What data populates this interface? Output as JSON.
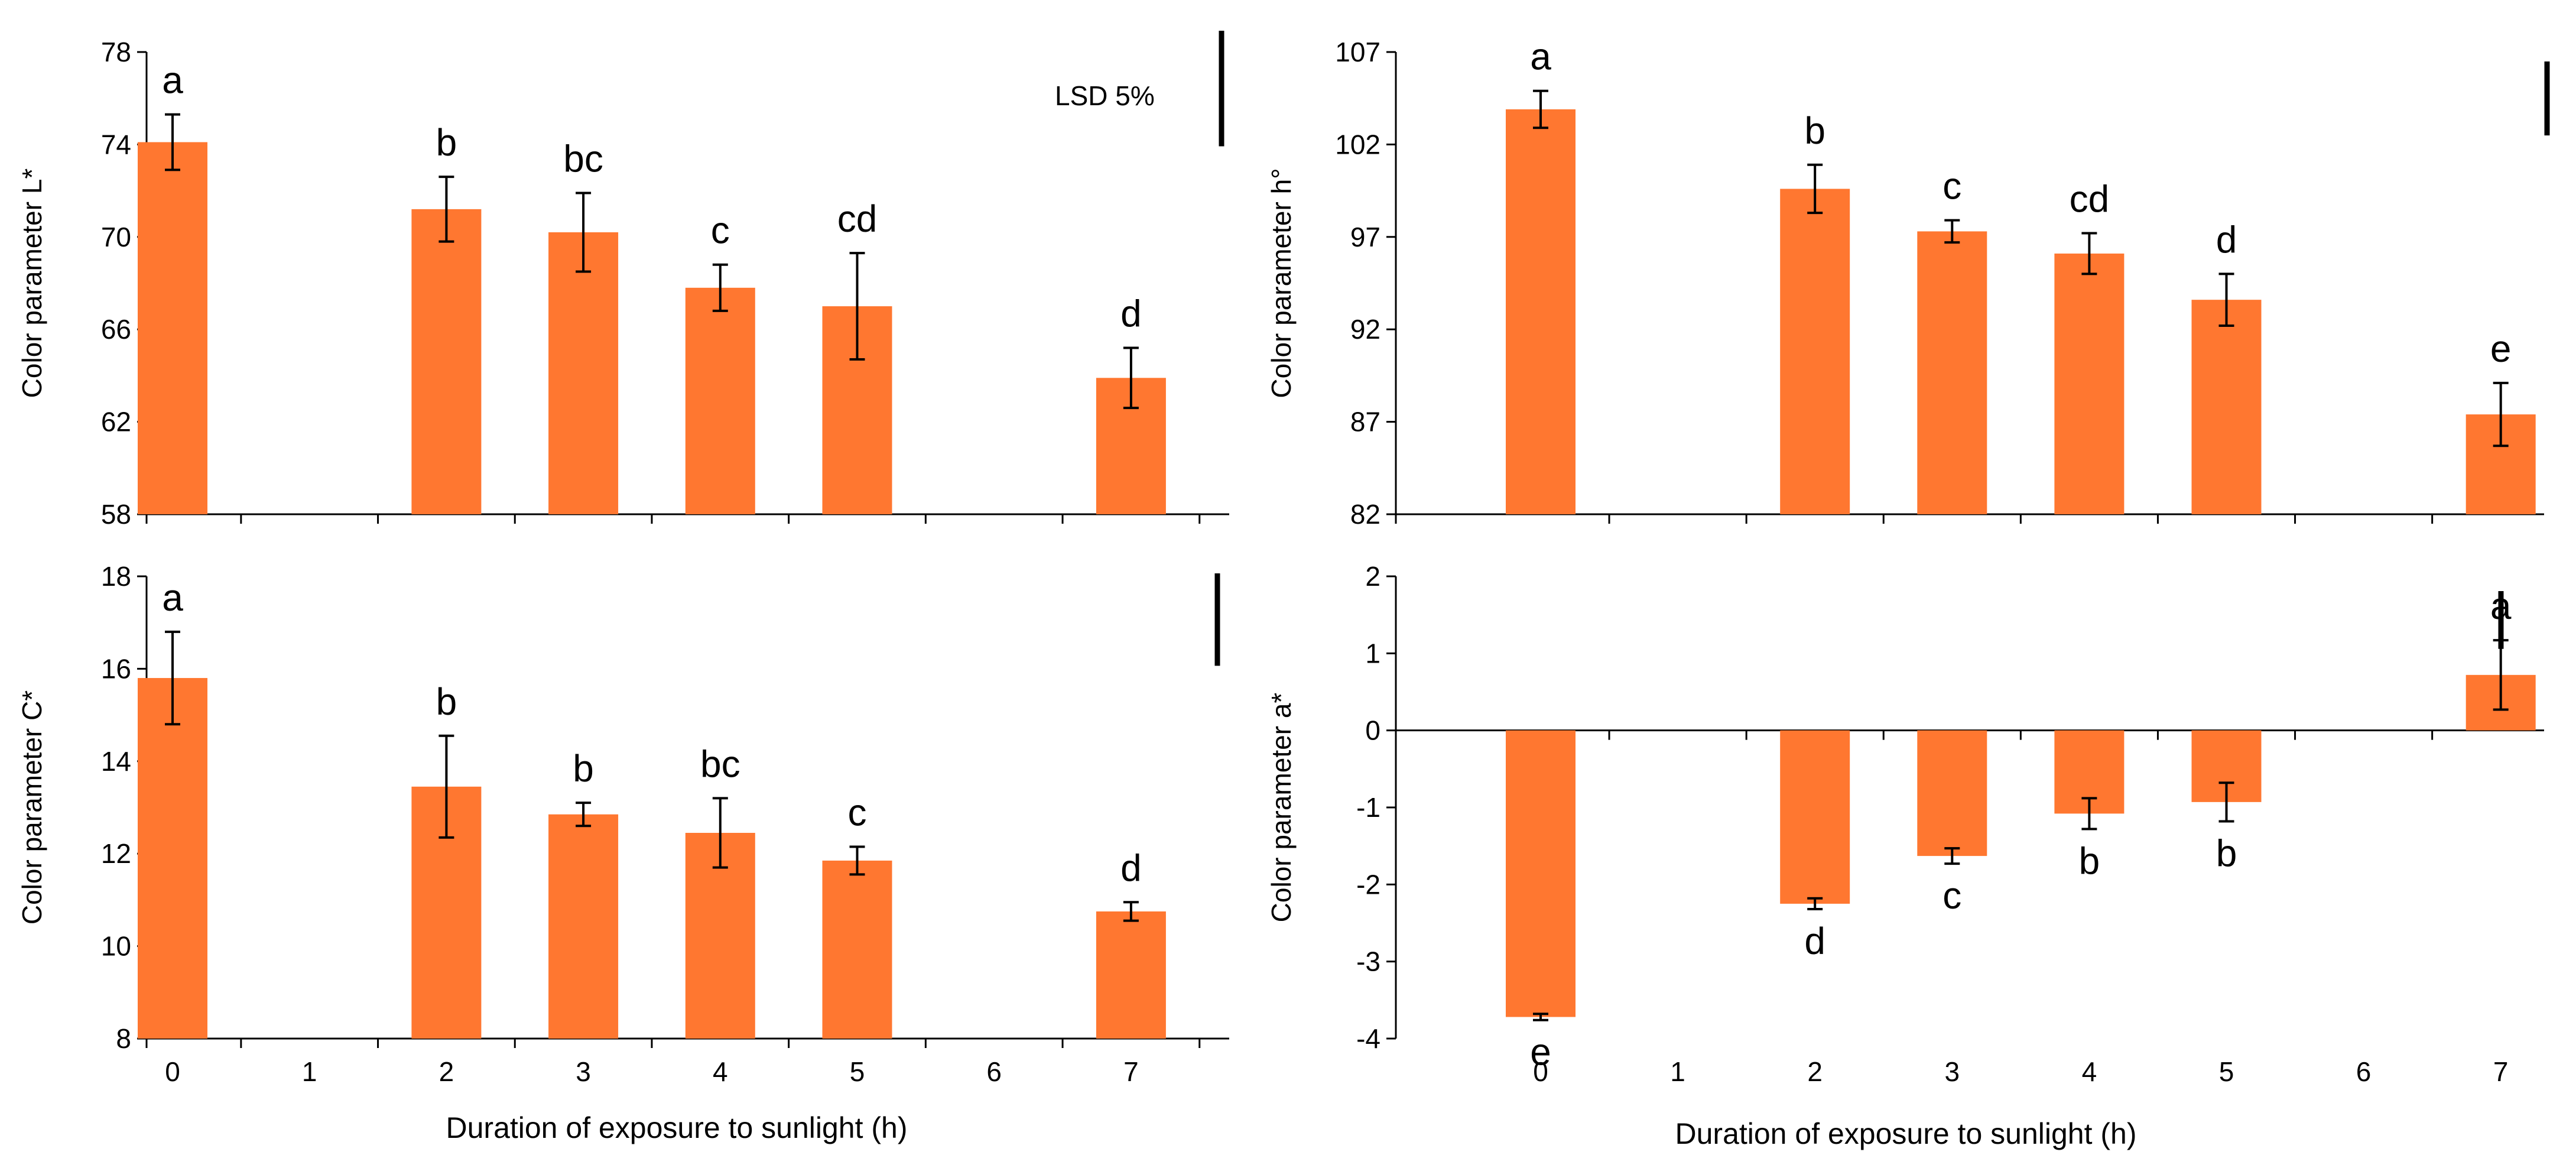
{
  "colors": {
    "bar": "#FF7730",
    "axis": "#000000"
  },
  "lsd_label": "LSD 5%",
  "x_axis_title": "Duration of exposure to sunlight (h)",
  "chart_data": [
    {
      "type": "bar",
      "panel": "top-left",
      "ylabel": "Color parameter L*",
      "ylim": [
        58,
        78
      ],
      "yticks": [
        "58",
        "62",
        "66",
        "70",
        "74",
        "78"
      ],
      "categories": [
        "0",
        "1",
        "2",
        "3",
        "4",
        "5",
        "6",
        "7"
      ],
      "x_tick_labels_shown": false,
      "values": [
        74.1,
        null,
        71.2,
        70.2,
        67.8,
        67.0,
        null,
        63.9
      ],
      "errors": [
        1.2,
        null,
        1.4,
        1.7,
        1.0,
        2.3,
        null,
        1.3
      ],
      "letters": [
        "a",
        "",
        "b",
        "bc",
        "c",
        "cd",
        "",
        "d"
      ],
      "lsd": 5.0,
      "lsd_label_shown": true
    },
    {
      "type": "bar",
      "panel": "top-right",
      "ylabel": "Color parameter h°",
      "ylim": [
        82,
        107
      ],
      "yticks": [
        "82",
        "87",
        "92",
        "97",
        "102",
        "107"
      ],
      "categories": [
        "0",
        "1",
        "2",
        "3",
        "4",
        "5",
        "6",
        "7"
      ],
      "x_tick_labels_shown": false,
      "values": [
        103.9,
        null,
        99.6,
        97.3,
        96.1,
        93.6,
        null,
        87.4
      ],
      "errors": [
        1.0,
        null,
        1.3,
        0.6,
        1.1,
        1.4,
        null,
        1.7
      ],
      "letters": [
        "a",
        "",
        "b",
        "c",
        "cd",
        "d",
        "",
        "e"
      ],
      "lsd": 4.0,
      "lsd_label_shown": false
    },
    {
      "type": "bar",
      "panel": "bottom-left",
      "ylabel": "Color parameter C*",
      "ylim": [
        8,
        18
      ],
      "yticks": [
        "8",
        "10",
        "12",
        "14",
        "16",
        "18"
      ],
      "categories": [
        "0",
        "1",
        "2",
        "3",
        "4",
        "5",
        "6",
        "7"
      ],
      "x_tick_labels_shown": true,
      "values": [
        15.8,
        null,
        13.45,
        12.85,
        12.45,
        11.85,
        null,
        10.75
      ],
      "errors": [
        1.0,
        null,
        1.1,
        0.25,
        0.75,
        0.3,
        null,
        0.2
      ],
      "letters": [
        "a",
        "",
        "b",
        "b",
        "bc",
        "c",
        "",
        "d"
      ],
      "lsd": 2.0,
      "lsd_label_shown": false
    },
    {
      "type": "bar",
      "panel": "bottom-right",
      "ylabel": "Color parameter a*",
      "ylim": [
        -4,
        2
      ],
      "yticks": [
        "-4",
        "-3",
        "-2",
        "-1",
        "0",
        "1",
        "2"
      ],
      "categories": [
        "0",
        "1",
        "2",
        "3",
        "4",
        "5",
        "6",
        "7"
      ],
      "x_tick_labels_shown": true,
      "values": [
        -3.72,
        null,
        -2.25,
        -1.63,
        -1.08,
        -0.93,
        null,
        0.72
      ],
      "errors": [
        0.04,
        null,
        0.07,
        0.1,
        0.2,
        0.25,
        null,
        0.45
      ],
      "letters": [
        "e",
        "",
        "d",
        "c",
        "b",
        "b",
        "",
        "a"
      ],
      "lsd": 0.75,
      "lsd_label_shown": false
    }
  ]
}
